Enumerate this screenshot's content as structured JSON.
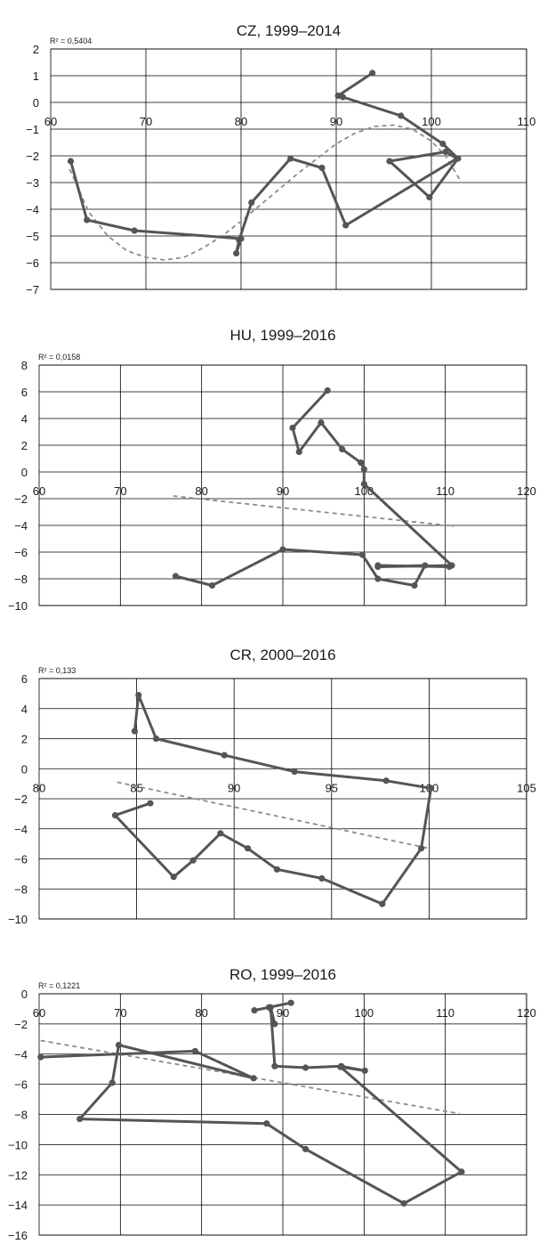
{
  "chart_data": [
    {
      "type": "line",
      "title": "CZ, 1999–2014",
      "r2_label": "R² = 0,5404",
      "xlim": [
        60,
        110
      ],
      "ylim": [
        -7,
        2
      ],
      "x_ticks": [
        60,
        70,
        80,
        90,
        100,
        110
      ],
      "x_tick_labels": [
        "60",
        "70",
        "80",
        "90",
        "100",
        "110"
      ],
      "y_ticks": [
        2,
        1,
        0,
        -1,
        -2,
        -3,
        -4,
        -5,
        -6,
        -7
      ],
      "y_tick_labels": [
        "2",
        "1",
        "0",
        "−1",
        "−2",
        "−3",
        "−4",
        "−5",
        "−6",
        "−7"
      ],
      "grid": true,
      "series": [
        {
          "points": [
            [
              93.8,
              1.1
            ],
            [
              90.2,
              0.25
            ],
            [
              90.7,
              0.2
            ],
            [
              96.8,
              -0.5
            ],
            [
              101.2,
              -1.55
            ],
            [
              102.8,
              -2.1
            ],
            [
              99.8,
              -3.55
            ],
            [
              95.6,
              -2.2
            ],
            [
              101.5,
              -1.85
            ],
            [
              102.7,
              -2.1
            ],
            [
              91.0,
              -4.6
            ],
            [
              88.5,
              -2.45
            ],
            [
              85.2,
              -2.1
            ],
            [
              81.1,
              -3.75
            ],
            [
              79.8,
              -5.15
            ],
            [
              79.5,
              -5.65
            ],
            [
              80.0,
              -5.1
            ],
            [
              68.8,
              -4.8
            ],
            [
              63.8,
              -4.4
            ],
            [
              62.1,
              -2.2
            ]
          ]
        }
      ],
      "trendline": {
        "type": "polynomial",
        "points": [
          [
            62,
            -2.5
          ],
          [
            64,
            -4.1
          ],
          [
            66,
            -5.0
          ],
          [
            68,
            -5.55
          ],
          [
            70,
            -5.8
          ],
          [
            72,
            -5.9
          ],
          [
            74,
            -5.8
          ],
          [
            76,
            -5.45
          ],
          [
            78,
            -5.0
          ],
          [
            80,
            -4.45
          ],
          [
            82,
            -3.85
          ],
          [
            84,
            -3.25
          ],
          [
            86,
            -2.65
          ],
          [
            88,
            -2.1
          ],
          [
            90,
            -1.55
          ],
          [
            92,
            -1.15
          ],
          [
            94,
            -0.9
          ],
          [
            96,
            -0.85
          ],
          [
            98,
            -1.0
          ],
          [
            100,
            -1.45
          ],
          [
            101.5,
            -2.0
          ],
          [
            103,
            -2.9
          ]
        ]
      }
    },
    {
      "type": "line",
      "title": "HU, 1999–2016",
      "r2_label": "R² = 0,0158",
      "xlim": [
        60,
        120
      ],
      "ylim": [
        -10,
        8
      ],
      "x_ticks": [
        60,
        70,
        80,
        90,
        100,
        110,
        120
      ],
      "x_tick_labels": [
        "60",
        "70",
        "80",
        "90",
        "100",
        "110",
        "120"
      ],
      "y_ticks": [
        8,
        6,
        4,
        2,
        0,
        -2,
        -4,
        -6,
        -8,
        -10
      ],
      "y_tick_labels": [
        "8",
        "6",
        "4",
        "2",
        "0",
        "−2",
        "−4",
        "−6",
        "−8",
        "−10"
      ],
      "grid": true,
      "series": [
        {
          "points": [
            [
              95.5,
              6.1
            ],
            [
              91.2,
              3.3
            ],
            [
              92.0,
              1.5
            ],
            [
              94.7,
              3.7
            ],
            [
              97.3,
              1.7
            ],
            [
              99.6,
              0.7
            ],
            [
              100.0,
              0.2
            ],
            [
              100.0,
              -0.9
            ],
            [
              110.8,
              -7.0
            ],
            [
              101.7,
              -7.1
            ],
            [
              107.5,
              -7.0
            ],
            [
              106.2,
              -8.5
            ],
            [
              101.7,
              -8.0
            ],
            [
              99.8,
              -6.2
            ],
            [
              90.0,
              -5.8
            ],
            [
              81.3,
              -8.5
            ],
            [
              76.8,
              -7.8
            ]
          ]
        },
        {
          "points": [
            [
              101.7,
              -7.0
            ],
            [
              110.5,
              -7.1
            ]
          ]
        }
      ],
      "trendline": {
        "type": "linear",
        "points": [
          [
            76.5,
            -1.8
          ],
          [
            111,
            -4.05
          ]
        ]
      }
    },
    {
      "type": "line",
      "title": "CR, 2000–2016",
      "r2_label": "R² = 0,133",
      "xlim": [
        80,
        105
      ],
      "ylim": [
        -10,
        6
      ],
      "x_ticks": [
        80,
        85,
        90,
        95,
        100,
        105
      ],
      "x_tick_labels": [
        "80",
        "85",
        "90",
        "95",
        "100",
        "105"
      ],
      "y_ticks": [
        6,
        4,
        2,
        0,
        -2,
        -4,
        -6,
        -8,
        -10
      ],
      "y_tick_labels": [
        "6",
        "4",
        "2",
        "0",
        "−2",
        "−4",
        "−6",
        "−8",
        "−10"
      ],
      "grid": true,
      "series": [
        {
          "points": [
            [
              84.9,
              2.5
            ],
            [
              85.1,
              4.9
            ],
            [
              86.0,
              2.0
            ],
            [
              89.5,
              0.9
            ],
            [
              93.1,
              -0.2
            ],
            [
              97.8,
              -0.8
            ],
            [
              100.1,
              -1.3
            ],
            [
              99.6,
              -5.3
            ],
            [
              97.6,
              -9.0
            ],
            [
              94.5,
              -7.3
            ],
            [
              92.2,
              -6.7
            ],
            [
              90.7,
              -5.3
            ],
            [
              89.3,
              -4.3
            ],
            [
              87.9,
              -6.1
            ],
            [
              86.9,
              -7.2
            ],
            [
              83.9,
              -3.1
            ],
            [
              85.7,
              -2.3
            ]
          ]
        }
      ],
      "trendline": {
        "type": "linear",
        "points": [
          [
            84.0,
            -0.9
          ],
          [
            100.0,
            -5.3
          ]
        ]
      }
    },
    {
      "type": "line",
      "title": "RO, 1999–2016",
      "r2_label": "R² = 0,1221",
      "xlim": [
        60,
        120
      ],
      "ylim": [
        -16,
        0
      ],
      "x_ticks": [
        60,
        70,
        80,
        90,
        100,
        110,
        120
      ],
      "x_tick_labels": [
        "60",
        "70",
        "80",
        "90",
        "100",
        "110",
        "120"
      ],
      "y_ticks": [
        0,
        -2,
        -4,
        -6,
        -8,
        -10,
        -12,
        -14,
        -16
      ],
      "y_tick_labels": [
        "0",
        "−2",
        "−4",
        "−6",
        "−8",
        "−10",
        "−12",
        "−14",
        "−16"
      ],
      "grid": true,
      "series": [
        {
          "points": [
            [
              91.0,
              -0.6
            ],
            [
              86.5,
              -1.1
            ],
            [
              88.3,
              -0.9
            ],
            [
              89.0,
              -2.0
            ],
            [
              88.5,
              -0.9
            ],
            [
              89.0,
              -4.8
            ],
            [
              92.8,
              -4.9
            ],
            [
              97.2,
              -4.8
            ],
            [
              100.1,
              -5.1
            ],
            [
              97.1,
              -4.85
            ],
            [
              112.0,
              -11.8
            ],
            [
              104.9,
              -13.9
            ],
            [
              92.8,
              -10.3
            ],
            [
              88.0,
              -8.6
            ],
            [
              65.0,
              -8.3
            ],
            [
              69.0,
              -5.9
            ],
            [
              69.8,
              -3.4
            ],
            [
              86.4,
              -5.6
            ],
            [
              79.2,
              -3.8
            ],
            [
              60.2,
              -4.2
            ]
          ]
        }
      ],
      "trendline": {
        "type": "linear",
        "points": [
          [
            60.2,
            -3.1
          ],
          [
            111.8,
            -7.95
          ]
        ]
      }
    }
  ]
}
